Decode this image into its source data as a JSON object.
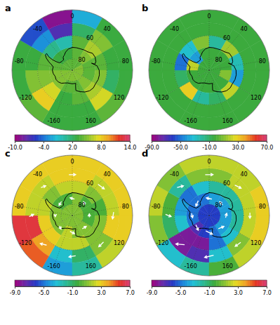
{
  "chart_data": [
    {
      "type": "polar_map",
      "title": "a",
      "lon_edges": [
        -180,
        -150,
        -120,
        -90,
        -60,
        -30,
        0,
        30,
        60,
        90,
        120,
        150,
        180
      ],
      "lat_edges": [
        -90,
        -80,
        -70,
        -60,
        -50,
        -40
      ],
      "cells": [
        [
          5,
          5,
          5,
          4,
          4,
          4,
          4,
          4,
          5,
          5,
          5,
          5
        ],
        [
          4,
          5,
          5,
          4,
          3,
          3,
          4,
          5,
          4,
          4,
          5,
          4
        ],
        [
          3,
          7,
          5,
          4,
          1,
          0,
          4,
          6,
          4,
          5,
          6,
          4
        ],
        [
          3,
          8,
          5,
          3,
          -3,
          -7,
          2,
          5,
          3,
          2,
          7,
          3
        ],
        [
          3,
          4,
          3,
          3,
          -5,
          -9,
          -2,
          3,
          3,
          3,
          4,
          3
        ]
      ],
      "colorbar": {
        "range": [
          -10,
          14
        ],
        "ticks": [
          {
            "value": -10,
            "label": "-10.0"
          },
          {
            "value": -4,
            "label": "-4.0"
          },
          {
            "value": 2,
            "label": "2.0"
          },
          {
            "value": 8,
            "label": "8.0"
          },
          {
            "value": 14,
            "label": "14.0"
          }
        ]
      },
      "lon_ticks": [
        0,
        40,
        80,
        120,
        160,
        -160,
        -120,
        -80,
        -40
      ],
      "lat_ticks": [
        {
          "value": -60,
          "label": "60"
        },
        {
          "value": -80,
          "label": "80"
        }
      ]
    },
    {
      "type": "polar_map",
      "title": "b",
      "lon_edges": [
        -180,
        -150,
        -120,
        -90,
        -60,
        -30,
        0,
        30,
        60,
        90,
        120,
        150,
        180
      ],
      "lat_edges": [
        -90,
        -80,
        -70,
        -60,
        -50,
        -40
      ],
      "cells": [
        [
          -3,
          -3,
          -3,
          -3,
          -3,
          -3,
          -3,
          -3,
          -3,
          -3,
          -3,
          -3
        ],
        [
          -3,
          -3,
          -3,
          20,
          -40,
          -3,
          -3,
          -3,
          -3,
          10,
          -3,
          -3
        ],
        [
          -20,
          30,
          -10,
          -50,
          -30,
          10,
          -20,
          15,
          -25,
          -40,
          20,
          -10
        ],
        [
          -3,
          -3,
          -3,
          -3,
          -3,
          -3,
          -3,
          -3,
          -3,
          -3,
          -3,
          -3
        ],
        [
          -3,
          -3,
          -3,
          -3,
          -3,
          -3,
          -3,
          -3,
          -3,
          -3,
          -3,
          -3
        ]
      ],
      "colorbar": {
        "range": [
          -90,
          70
        ],
        "ticks": [
          {
            "value": -90,
            "label": "-90.0"
          },
          {
            "value": -50,
            "label": "-50.0"
          },
          {
            "value": -10,
            "label": "-10.0"
          },
          {
            "value": 30,
            "label": "30.0"
          },
          {
            "value": 70,
            "label": "70.0"
          }
        ]
      },
      "lon_ticks": [
        0,
        40,
        80,
        120,
        160,
        -160,
        -120,
        -80,
        -40
      ],
      "lat_ticks": [
        {
          "value": -60,
          "label": "60"
        },
        {
          "value": -80,
          "label": "80"
        }
      ]
    },
    {
      "type": "polar_map",
      "title": "c",
      "lon_edges": [
        -180,
        -150,
        -120,
        -90,
        -60,
        -30,
        0,
        30,
        60,
        90,
        120,
        150,
        180
      ],
      "lat_edges": [
        -90,
        -80,
        -70,
        -60,
        -50,
        -40
      ],
      "cells": [
        [
          1,
          1,
          1,
          1,
          1,
          1,
          1,
          1,
          1,
          1,
          1,
          1
        ],
        [
          2,
          1,
          1,
          1,
          0,
          0,
          1,
          0,
          0,
          0,
          1,
          1
        ],
        [
          2,
          3,
          3,
          2,
          1,
          2,
          2,
          1,
          0,
          1,
          1,
          2
        ],
        [
          -3,
          4,
          6,
          2,
          2,
          3,
          3,
          2,
          2,
          3,
          1,
          -1
        ],
        [
          -4,
          5,
          6,
          3,
          3,
          3,
          3,
          3,
          3,
          3,
          2,
          -2
        ]
      ],
      "colorbar": {
        "range": [
          -9,
          7
        ],
        "ticks": [
          {
            "value": -9,
            "label": "-9.0"
          },
          {
            "value": -5,
            "label": "-5.0"
          },
          {
            "value": -1,
            "label": "-1.0"
          },
          {
            "value": 3,
            "label": "3.0"
          },
          {
            "value": 7,
            "label": "7.0"
          }
        ]
      },
      "lon_ticks": [
        0,
        40,
        80,
        120,
        160,
        -160,
        -120,
        -80,
        -40
      ],
      "lat_ticks": [
        {
          "value": -60,
          "label": "60"
        },
        {
          "value": -80,
          "label": "80"
        }
      ],
      "vectors": {
        "lon": [
          -180,
          -135,
          -90,
          -45,
          0,
          45,
          90,
          135,
          -180,
          -135,
          -90,
          -45,
          0,
          45,
          90,
          135
        ],
        "lat": [
          -55,
          -55,
          -55,
          -55,
          -55,
          -55,
          -55,
          -55,
          -75,
          -75,
          -75,
          -75,
          -75,
          -75,
          -75,
          -75
        ],
        "u": [
          6,
          5,
          2,
          4,
          6,
          7,
          6,
          6,
          -4,
          -3,
          -2,
          -4,
          -4,
          -3,
          -3,
          -4
        ],
        "v": [
          1,
          3,
          -4,
          -2,
          0,
          1,
          -1,
          0,
          2,
          1,
          0,
          -1,
          1,
          1,
          0,
          1
        ]
      }
    },
    {
      "type": "polar_map",
      "title": "d",
      "lon_edges": [
        -180,
        -150,
        -120,
        -90,
        -60,
        -30,
        0,
        30,
        60,
        90,
        120,
        150,
        180
      ],
      "lat_edges": [
        -90,
        -80,
        -70,
        -60,
        -50,
        -40
      ],
      "cells": [
        [
          -6,
          -6,
          -6,
          -6,
          -6,
          -6,
          -6,
          -6,
          -6,
          -6,
          -6,
          -6
        ],
        [
          -6,
          -7,
          -5,
          -5,
          -5,
          -5,
          -4,
          -4,
          -4,
          -4,
          -4,
          -5
        ],
        [
          -8,
          -8,
          -3,
          -4,
          -5,
          -3,
          -2,
          -2,
          -2,
          -2,
          -3,
          -5
        ],
        [
          -7,
          -8,
          -1,
          0,
          -2,
          1,
          1,
          2,
          2,
          2,
          1,
          -3
        ],
        [
          -2,
          -3,
          1,
          2,
          1,
          2,
          2,
          2,
          3,
          3,
          2,
          0
        ]
      ],
      "colorbar": {
        "range": [
          -9,
          7
        ],
        "ticks": [
          {
            "value": -9,
            "label": "-9.0"
          },
          {
            "value": -5,
            "label": "-5.0"
          },
          {
            "value": -1,
            "label": "-1.0"
          },
          {
            "value": 3,
            "label": "3.0"
          },
          {
            "value": 7,
            "label": "7.0"
          }
        ]
      },
      "lon_ticks": [
        0,
        40,
        80,
        120,
        160,
        -160,
        -120,
        -80,
        -40
      ],
      "lat_ticks": [
        {
          "value": -60,
          "label": "60"
        },
        {
          "value": -80,
          "label": "80"
        }
      ],
      "vectors": {
        "lon": [
          -180,
          -135,
          -90,
          -45,
          0,
          45,
          90,
          135,
          -180,
          -135,
          -90,
          -45,
          0,
          45,
          90,
          135
        ],
        "lat": [
          -55,
          -55,
          -55,
          -55,
          -55,
          -55,
          -55,
          -55,
          -75,
          -75,
          -75,
          -75,
          -75,
          -75,
          -75,
          -75
        ],
        "u": [
          8,
          6,
          -2,
          5,
          7,
          6,
          5,
          6,
          -6,
          -5,
          -4,
          -5,
          -5,
          -4,
          -4,
          -5
        ],
        "v": [
          2,
          5,
          -5,
          -3,
          0,
          2,
          0,
          -1,
          3,
          2,
          -1,
          -2,
          1,
          0,
          1,
          2
        ]
      }
    }
  ]
}
